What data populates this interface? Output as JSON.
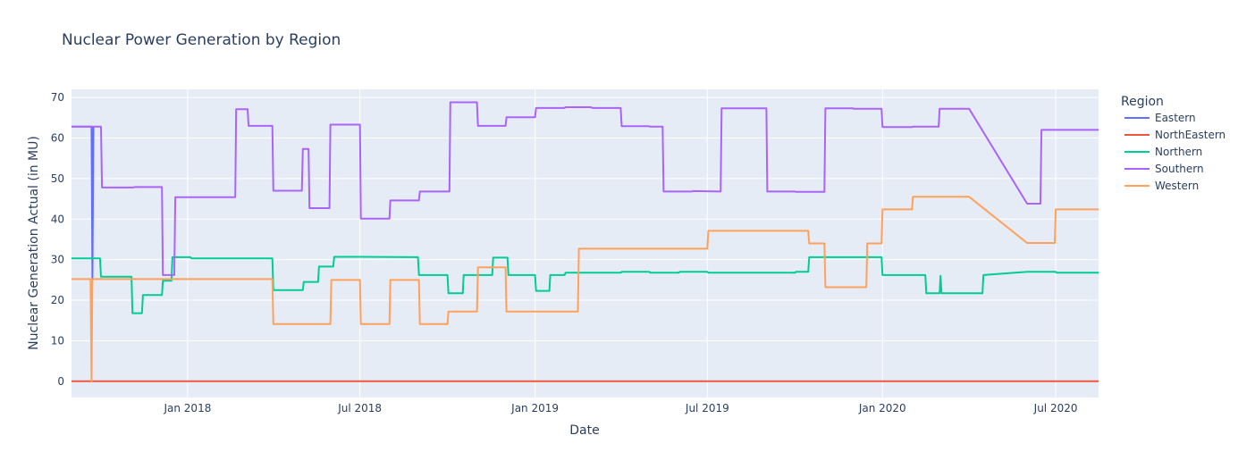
{
  "chart_data": {
    "type": "line",
    "title": "Nuclear Power Generation by Region",
    "xlabel": "Date",
    "ylabel": "Nuclear Generation Actual (in MU)",
    "x_range": [
      "2017-09-01",
      "2020-08-15"
    ],
    "ylim": [
      -4,
      72
    ],
    "x_ticks": [
      {
        "date": "2018-01-01",
        "label": "Jan 2018"
      },
      {
        "date": "2018-07-01",
        "label": "Jul 2018"
      },
      {
        "date": "2019-01-01",
        "label": "Jan 2019"
      },
      {
        "date": "2019-07-01",
        "label": "Jul 2019"
      },
      {
        "date": "2020-01-01",
        "label": "Jan 2020"
      },
      {
        "date": "2020-07-01",
        "label": "Jul 2020"
      }
    ],
    "y_ticks": [
      0,
      10,
      20,
      30,
      40,
      50,
      60,
      70
    ],
    "grid": true,
    "legend": {
      "title": "Region",
      "position": "right"
    },
    "series": [
      {
        "name": "Eastern",
        "color": "#636efa",
        "points": [
          [
            "2017-09-01",
            62.8
          ],
          [
            "2017-09-22",
            62.8
          ],
          [
            "2017-09-23",
            25.0
          ],
          [
            "2017-09-24",
            62.8
          ]
        ]
      },
      {
        "name": "NorthEastern",
        "color": "#ef553b",
        "points": [
          [
            "2017-09-01",
            0
          ],
          [
            "2020-08-15",
            0
          ]
        ]
      },
      {
        "name": "Northern",
        "color": "#00cc96",
        "points": [
          [
            "2017-09-01",
            30.3
          ],
          [
            "2017-10-01",
            30.3
          ],
          [
            "2017-10-02",
            25.8
          ],
          [
            "2017-11-03",
            25.8
          ],
          [
            "2017-11-04",
            16.8
          ],
          [
            "2017-11-14",
            16.8
          ],
          [
            "2017-11-15",
            21.3
          ],
          [
            "2017-12-05",
            21.3
          ],
          [
            "2017-12-06",
            24.8
          ],
          [
            "2017-12-15",
            24.8
          ],
          [
            "2017-12-16",
            30.6
          ],
          [
            "2018-01-04",
            30.6
          ],
          [
            "2018-01-05",
            30.3
          ],
          [
            "2018-03-31",
            30.3
          ],
          [
            "2018-04-01",
            22.5
          ],
          [
            "2018-05-02",
            22.5
          ],
          [
            "2018-05-03",
            24.5
          ],
          [
            "2018-05-18",
            24.5
          ],
          [
            "2018-05-19",
            28.3
          ],
          [
            "2018-06-03",
            28.3
          ],
          [
            "2018-06-04",
            30.7
          ],
          [
            "2018-07-01",
            30.7
          ],
          [
            "2018-08-31",
            30.6
          ],
          [
            "2018-09-01",
            26.2
          ],
          [
            "2018-10-01",
            26.2
          ],
          [
            "2018-10-02",
            21.7
          ],
          [
            "2018-10-17",
            21.7
          ],
          [
            "2018-10-18",
            26.2
          ],
          [
            "2018-11-17",
            26.2
          ],
          [
            "2018-11-18",
            30.5
          ],
          [
            "2018-12-03",
            30.5
          ],
          [
            "2018-12-04",
            26.2
          ],
          [
            "2019-01-01",
            26.2
          ],
          [
            "2019-01-02",
            22.3
          ],
          [
            "2019-01-16",
            22.3
          ],
          [
            "2019-01-17",
            26.2
          ],
          [
            "2019-02-01",
            26.2
          ],
          [
            "2019-02-02",
            26.8
          ],
          [
            "2019-04-01",
            26.8
          ],
          [
            "2019-04-02",
            27.0
          ],
          [
            "2019-05-01",
            27.0
          ],
          [
            "2019-05-02",
            26.8
          ],
          [
            "2019-06-01",
            26.8
          ],
          [
            "2019-06-02",
            27.0
          ],
          [
            "2019-07-01",
            27.0
          ],
          [
            "2019-07-02",
            26.8
          ],
          [
            "2019-10-01",
            26.8
          ],
          [
            "2019-10-02",
            27.0
          ],
          [
            "2019-10-15",
            27.0
          ],
          [
            "2019-10-16",
            30.6
          ],
          [
            "2019-12-31",
            30.6
          ],
          [
            "2020-01-01",
            26.2
          ],
          [
            "2020-02-15",
            26.2
          ],
          [
            "2020-02-16",
            21.7
          ],
          [
            "2020-03-01",
            21.7
          ],
          [
            "2020-03-02",
            26.0
          ],
          [
            "2020-03-03",
            21.7
          ],
          [
            "2020-04-15",
            21.7
          ],
          [
            "2020-04-16",
            26.2
          ],
          [
            "2020-06-01",
            27.0
          ],
          [
            "2020-07-01",
            27.0
          ],
          [
            "2020-07-02",
            26.8
          ],
          [
            "2020-08-15",
            26.8
          ]
        ]
      },
      {
        "name": "Southern",
        "color": "#ab63fa",
        "points": [
          [
            "2017-09-01",
            62.8
          ],
          [
            "2017-10-02",
            62.8
          ],
          [
            "2017-10-03",
            47.8
          ],
          [
            "2017-11-05",
            47.8
          ],
          [
            "2017-11-06",
            47.9
          ],
          [
            "2017-12-05",
            47.9
          ],
          [
            "2017-12-06",
            26.2
          ],
          [
            "2017-12-18",
            26.2
          ],
          [
            "2017-12-19",
            45.4
          ],
          [
            "2018-02-20",
            45.4
          ],
          [
            "2018-02-21",
            67.1
          ],
          [
            "2018-03-05",
            67.1
          ],
          [
            "2018-03-06",
            63.0
          ],
          [
            "2018-03-31",
            63.0
          ],
          [
            "2018-04-01",
            47.0
          ],
          [
            "2018-05-01",
            47.0
          ],
          [
            "2018-05-02",
            57.3
          ],
          [
            "2018-05-08",
            57.3
          ],
          [
            "2018-05-09",
            42.7
          ],
          [
            "2018-05-30",
            42.7
          ],
          [
            "2018-05-31",
            63.3
          ],
          [
            "2018-07-01",
            63.3
          ],
          [
            "2018-07-02",
            40.1
          ],
          [
            "2018-08-01",
            40.1
          ],
          [
            "2018-08-02",
            44.6
          ],
          [
            "2018-09-01",
            44.6
          ],
          [
            "2018-09-02",
            46.8
          ],
          [
            "2018-10-03",
            46.8
          ],
          [
            "2018-10-04",
            68.8
          ],
          [
            "2018-11-01",
            68.8
          ],
          [
            "2018-11-02",
            63.0
          ],
          [
            "2018-12-01",
            63.0
          ],
          [
            "2018-12-02",
            65.1
          ],
          [
            "2019-01-01",
            65.1
          ],
          [
            "2019-01-02",
            67.4
          ],
          [
            "2019-02-01",
            67.4
          ],
          [
            "2019-02-02",
            67.6
          ],
          [
            "2019-03-01",
            67.6
          ],
          [
            "2019-03-02",
            67.4
          ],
          [
            "2019-04-01",
            67.4
          ],
          [
            "2019-04-02",
            62.9
          ],
          [
            "2019-05-01",
            62.9
          ],
          [
            "2019-05-02",
            62.8
          ],
          [
            "2019-05-15",
            62.8
          ],
          [
            "2019-05-16",
            46.8
          ],
          [
            "2019-06-15",
            46.8
          ],
          [
            "2019-06-16",
            46.9
          ],
          [
            "2019-07-15",
            46.8
          ],
          [
            "2019-07-16",
            67.3
          ],
          [
            "2019-09-01",
            67.3
          ],
          [
            "2019-09-02",
            46.8
          ],
          [
            "2019-10-01",
            46.8
          ],
          [
            "2019-10-02",
            46.7
          ],
          [
            "2019-11-01",
            46.7
          ],
          [
            "2019-11-02",
            67.3
          ],
          [
            "2019-12-01",
            67.3
          ],
          [
            "2019-12-02",
            67.2
          ],
          [
            "2019-12-31",
            67.2
          ],
          [
            "2020-01-01",
            62.7
          ],
          [
            "2020-02-01",
            62.7
          ],
          [
            "2020-02-02",
            62.8
          ],
          [
            "2020-02-29",
            62.8
          ],
          [
            "2020-03-01",
            67.2
          ],
          [
            "2020-04-01",
            67.2
          ],
          [
            "2020-06-01",
            43.8
          ],
          [
            "2020-06-15",
            43.8
          ],
          [
            "2020-06-16",
            62.0
          ],
          [
            "2020-08-15",
            62.0
          ]
        ]
      },
      {
        "name": "Western",
        "color": "#ffa15a",
        "points": [
          [
            "2017-09-01",
            25.2
          ],
          [
            "2017-09-21",
            25.2
          ],
          [
            "2017-09-22",
            0
          ],
          [
            "2017-09-23",
            25.2
          ],
          [
            "2018-03-31",
            25.2
          ],
          [
            "2018-04-01",
            14.1
          ],
          [
            "2018-05-31",
            14.1
          ],
          [
            "2018-06-01",
            25.0
          ],
          [
            "2018-07-01",
            25.0
          ],
          [
            "2018-07-02",
            14.1
          ],
          [
            "2018-08-01",
            14.1
          ],
          [
            "2018-08-02",
            25.0
          ],
          [
            "2018-09-01",
            25.0
          ],
          [
            "2018-09-02",
            14.1
          ],
          [
            "2018-10-01",
            14.1
          ],
          [
            "2018-10-02",
            17.2
          ],
          [
            "2018-11-01",
            17.2
          ],
          [
            "2018-11-02",
            28.1
          ],
          [
            "2018-12-01",
            28.1
          ],
          [
            "2018-12-02",
            17.2
          ],
          [
            "2019-02-15",
            17.2
          ],
          [
            "2019-02-16",
            32.7
          ],
          [
            "2019-07-01",
            32.7
          ],
          [
            "2019-07-02",
            37.1
          ],
          [
            "2019-10-15",
            37.1
          ],
          [
            "2019-10-16",
            34.0
          ],
          [
            "2019-11-01",
            34.0
          ],
          [
            "2019-11-02",
            23.2
          ],
          [
            "2019-12-15",
            23.2
          ],
          [
            "2019-12-16",
            34.0
          ],
          [
            "2019-12-31",
            34.0
          ],
          [
            "2020-01-01",
            42.4
          ],
          [
            "2020-02-01",
            42.4
          ],
          [
            "2020-02-02",
            45.5
          ],
          [
            "2020-04-01",
            45.5
          ],
          [
            "2020-06-01",
            34.1
          ],
          [
            "2020-06-30",
            34.1
          ],
          [
            "2020-07-01",
            42.4
          ],
          [
            "2020-08-15",
            42.4
          ]
        ]
      }
    ]
  }
}
